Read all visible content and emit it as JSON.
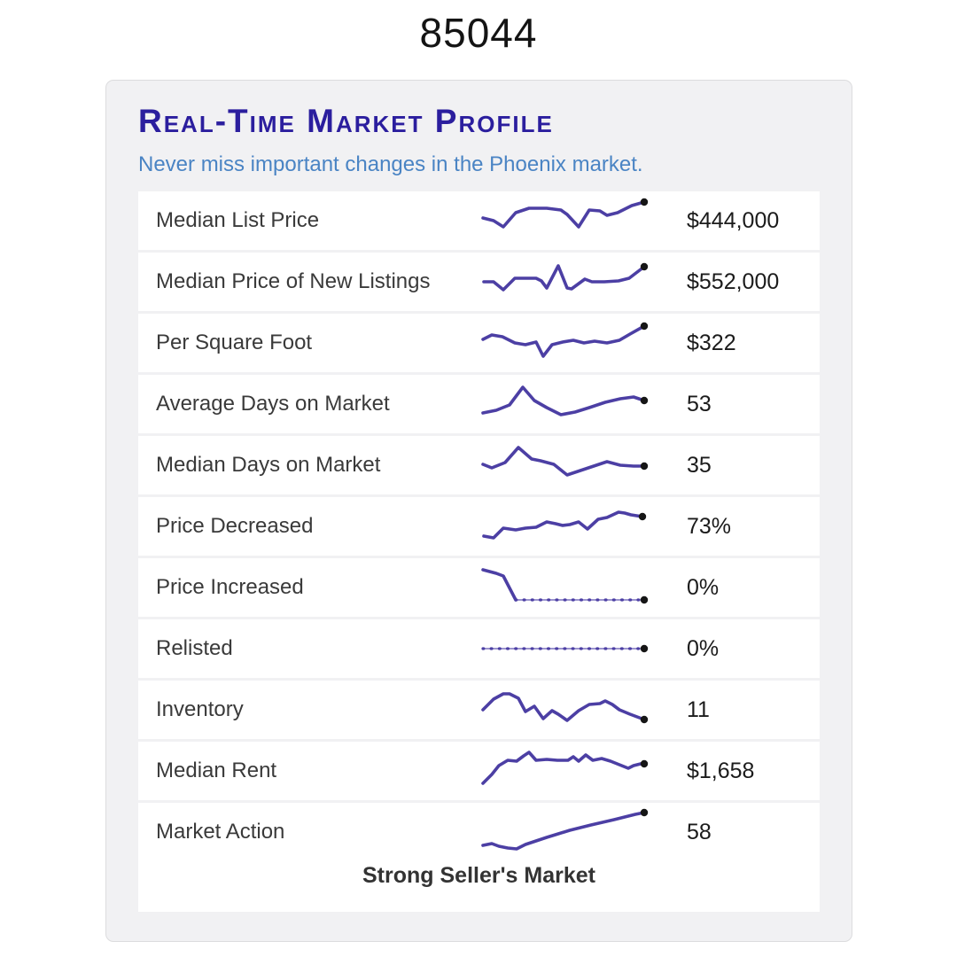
{
  "zip": "85044",
  "card": {
    "title": "Real-Time Market Profile",
    "subtitle": "Never miss important changes in the Phoenix market.",
    "footer": "Strong Seller's Market"
  },
  "colors": {
    "title_accent": "#2b1e9e",
    "subtitle_blue": "#4a84c4",
    "sparkline": "#4c3fa4",
    "sparkline_light": "#7a70bd",
    "end_dot": "#161616"
  },
  "rows": [
    {
      "label": "Median List Price",
      "value": "$444,000",
      "spark": {
        "segments": [
          {
            "style": "solid",
            "points": [
              [
                4,
                21
              ],
              [
                16,
                24
              ],
              [
                27,
                31
              ],
              [
                41,
                15
              ],
              [
                56,
                10
              ],
              [
                76,
                10
              ],
              [
                92,
                12
              ],
              [
                99,
                17
              ],
              [
                112,
                31
              ],
              [
                124,
                12
              ],
              [
                136,
                13
              ],
              [
                144,
                18
              ],
              [
                156,
                15
              ],
              [
                172,
                7
              ],
              [
                186,
                3
              ]
            ]
          }
        ]
      }
    },
    {
      "label": "Median Price of New Listings",
      "value": "$552,000",
      "spark": {
        "segments": [
          {
            "style": "solid",
            "points": [
              [
                5,
                24
              ],
              [
                16,
                24
              ],
              [
                27,
                33
              ],
              [
                40,
                20
              ],
              [
                55,
                20
              ],
              [
                64,
                20
              ],
              [
                70,
                23
              ],
              [
                76,
                31
              ],
              [
                89,
                6
              ],
              [
                99,
                31
              ],
              [
                104,
                32
              ],
              [
                119,
                21
              ],
              [
                127,
                24
              ],
              [
                141,
                24
              ],
              [
                157,
                23
              ],
              [
                169,
                20
              ],
              [
                186,
                7
              ]
            ]
          }
        ]
      }
    },
    {
      "label": "Per Square Foot",
      "value": "$322",
      "spark": {
        "segments": [
          {
            "style": "solid",
            "points": [
              [
                4,
                20
              ],
              [
                14,
                15
              ],
              [
                26,
                17
              ],
              [
                40,
                24
              ],
              [
                52,
                26
              ],
              [
                64,
                23
              ],
              [
                72,
                39
              ],
              [
                82,
                26
              ],
              [
                94,
                23
              ],
              [
                106,
                21
              ],
              [
                118,
                24
              ],
              [
                130,
                22
              ],
              [
                144,
                24
              ],
              [
                158,
                21
              ],
              [
                170,
                14
              ],
              [
                186,
                5
              ]
            ]
          }
        ]
      }
    },
    {
      "label": "Average Days on Market",
      "value": "53",
      "spark": {
        "segments": [
          {
            "style": "solid",
            "points": [
              [
                4,
                34
              ],
              [
                19,
                31
              ],
              [
                34,
                25
              ],
              [
                49,
                5
              ],
              [
                62,
                20
              ],
              [
                76,
                28
              ],
              [
                92,
                36
              ],
              [
                108,
                33
              ],
              [
                124,
                28
              ],
              [
                142,
                22
              ],
              [
                159,
                18
              ],
              [
                174,
                16
              ],
              [
                186,
                20
              ]
            ]
          }
        ]
      }
    },
    {
      "label": "Median Days on Market",
      "value": "35",
      "spark": {
        "segments": [
          {
            "style": "solid",
            "points": [
              [
                4,
                23
              ],
              [
                14,
                27
              ],
              [
                29,
                21
              ],
              [
                44,
                4
              ],
              [
                59,
                17
              ],
              [
                69,
                19
              ],
              [
                84,
                23
              ],
              [
                99,
                35
              ],
              [
                114,
                30
              ],
              [
                129,
                25
              ],
              [
                144,
                20
              ],
              [
                159,
                24
              ],
              [
                174,
                25
              ],
              [
                186,
                25
              ]
            ]
          }
        ]
      }
    },
    {
      "label": "Price Decreased",
      "value": "73%",
      "spark": {
        "segments": [
          {
            "style": "solid",
            "points": [
              [
                5,
                35
              ],
              [
                16,
                37
              ],
              [
                27,
                26
              ],
              [
                41,
                28
              ],
              [
                52,
                26
              ],
              [
                64,
                25
              ],
              [
                76,
                19
              ],
              [
                86,
                21
              ],
              [
                94,
                23
              ],
              [
                102,
                22
              ],
              [
                112,
                19
              ],
              [
                122,
                27
              ],
              [
                134,
                16
              ],
              [
                144,
                14
              ],
              [
                157,
                8
              ],
              [
                164,
                9
              ],
              [
                171,
                11
              ],
              [
                184,
                13
              ]
            ]
          }
        ]
      }
    },
    {
      "label": "Price Increased",
      "value": "0%",
      "spark": {
        "segments": [
          {
            "style": "solid",
            "points": [
              [
                4,
                4
              ],
              [
                19,
                8
              ],
              [
                27,
                11
              ],
              [
                41,
                38
              ]
            ]
          },
          {
            "style": "dotted",
            "points": [
              [
                41,
                38
              ],
              [
                186,
                38
              ]
            ]
          }
        ]
      }
    },
    {
      "label": "Relisted",
      "value": "0%",
      "spark": {
        "segments": [
          {
            "style": "dotted",
            "points": [
              [
                4,
                24
              ],
              [
                186,
                24
              ]
            ]
          }
        ]
      }
    },
    {
      "label": "Inventory",
      "value": "11",
      "spark": {
        "segments": [
          {
            "style": "solid",
            "points": [
              [
                4,
                24
              ],
              [
                16,
                12
              ],
              [
                27,
                6
              ],
              [
                34,
                6
              ],
              [
                44,
                11
              ],
              [
                52,
                26
              ],
              [
                62,
                20
              ],
              [
                72,
                34
              ],
              [
                82,
                25
              ],
              [
                89,
                29
              ],
              [
                99,
                36
              ],
              [
                112,
                25
              ],
              [
                124,
                18
              ],
              [
                136,
                17
              ],
              [
                142,
                14
              ],
              [
                150,
                18
              ],
              [
                158,
                24
              ],
              [
                170,
                29
              ],
              [
                186,
                35
              ]
            ]
          }
        ]
      }
    },
    {
      "label": "Median Rent",
      "value": "$1,658",
      "spark": {
        "segments": [
          {
            "style": "solid",
            "points": [
              [
                4,
                38
              ],
              [
                14,
                28
              ],
              [
                22,
                18
              ],
              [
                32,
                12
              ],
              [
                42,
                13
              ],
              [
                50,
                7
              ],
              [
                56,
                3
              ],
              [
                64,
                12
              ],
              [
                76,
                11
              ],
              [
                88,
                12
              ],
              [
                100,
                12
              ],
              [
                106,
                8
              ],
              [
                112,
                13
              ],
              [
                120,
                6
              ],
              [
                128,
                12
              ],
              [
                138,
                10
              ],
              [
                148,
                13
              ],
              [
                158,
                17
              ],
              [
                168,
                21
              ],
              [
                174,
                18
              ],
              [
                182,
                16
              ],
              [
                186,
                16
              ]
            ]
          }
        ]
      }
    },
    {
      "label": "Market Action",
      "value": "58",
      "spark": {
        "segments": [
          {
            "style": "solid",
            "points": [
              [
                4,
                39
              ],
              [
                14,
                37
              ],
              [
                22,
                40
              ],
              [
                32,
                42
              ],
              [
                42,
                43
              ],
              [
                52,
                38
              ],
              [
                64,
                34
              ],
              [
                76,
                30
              ],
              [
                89,
                26
              ],
              [
                102,
                22
              ],
              [
                114,
                19
              ],
              [
                126,
                16
              ],
              [
                139,
                13
              ],
              [
                152,
                10
              ],
              [
                164,
                7
              ],
              [
                176,
                4
              ],
              [
                186,
                2
              ]
            ]
          }
        ]
      }
    }
  ]
}
